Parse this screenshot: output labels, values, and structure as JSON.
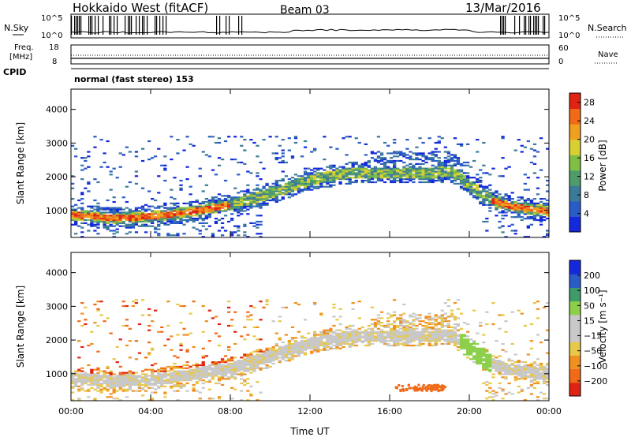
{
  "header": {
    "station": "Hokkaido West (fitACF)",
    "beam": "Beam 03",
    "date": "13/Mar/2016"
  },
  "top_panels": {
    "nsky_label": "N.Sky",
    "nsearch_label": "N.Search",
    "noise_ticks": [
      "10^5",
      "10^0"
    ],
    "freq_label_1": "Freq.",
    "freq_label_2": "[MHz]",
    "freq_ticks": [
      "18",
      "8"
    ],
    "nave_label": "Nave",
    "nave_ticks": [
      "60",
      "0"
    ],
    "cpid_label": "CPID",
    "cpid_text": "normal (fast stereo) 153"
  },
  "colors": {
    "power_scale": [
      "#1428dc",
      "#2a5cc8",
      "#3c7a9a",
      "#4f9b6c",
      "#80bf44",
      "#d8cf32",
      "#f0a020",
      "#f06a18",
      "#e02414"
    ],
    "velocity_scale": [
      "#e02414",
      "#f06a18",
      "#f09020",
      "#e8c84a",
      "#c8c8c8",
      "#c8c8c8",
      "#8ccf4a",
      "#3f9b6a",
      "#2a5cc8",
      "#1428dc"
    ]
  },
  "chart_data": [
    {
      "type": "heatmap",
      "panel": "power",
      "ylabel": "Slant Range [km]",
      "y_ticks": [
        1000,
        2000,
        3000,
        4000
      ],
      "ylim": [
        200,
        4600
      ],
      "colorbar_label": "Power [dB]",
      "colorbar_ticks": [
        4,
        8,
        12,
        16,
        20,
        24,
        28
      ],
      "colorbar_range": [
        0,
        30
      ],
      "x_ticks": [
        "00:00",
        "04:00",
        "08:00",
        "12:00",
        "16:00",
        "20:00",
        "00:00"
      ],
      "band_center_km": [
        [
          0,
          850
        ],
        [
          2,
          750
        ],
        [
          4,
          800
        ],
        [
          6,
          950
        ],
        [
          8,
          1150
        ],
        [
          10,
          1500
        ],
        [
          12,
          1900
        ],
        [
          14,
          2100
        ],
        [
          16,
          2100
        ],
        [
          18,
          2100
        ],
        [
          19,
          2150
        ],
        [
          20,
          1700
        ],
        [
          21,
          1300
        ],
        [
          22,
          1100
        ],
        [
          24,
          950
        ]
      ]
    },
    {
      "type": "heatmap",
      "panel": "velocity",
      "ylabel": "Slant Range [km]",
      "y_ticks": [
        1000,
        2000,
        3000,
        4000
      ],
      "ylim": [
        200,
        4600
      ],
      "colorbar_label": "Velocity [m s⁻¹]",
      "colorbar_ticks": [
        200,
        100,
        50,
        15,
        -15,
        -50,
        -100,
        -200
      ],
      "xlabel": "Time UT",
      "x_ticks": [
        "00:00",
        "04:00",
        "08:00",
        "12:00",
        "16:00",
        "20:00",
        "00:00"
      ],
      "band_center_km": [
        [
          0,
          850
        ],
        [
          2,
          750
        ],
        [
          4,
          800
        ],
        [
          6,
          950
        ],
        [
          8,
          1150
        ],
        [
          10,
          1500
        ],
        [
          12,
          1900
        ],
        [
          14,
          2100
        ],
        [
          16,
          2100
        ],
        [
          18,
          2100
        ],
        [
          19,
          2150
        ],
        [
          20,
          1700
        ],
        [
          21,
          1300
        ],
        [
          22,
          1100
        ],
        [
          24,
          950
        ]
      ]
    }
  ]
}
